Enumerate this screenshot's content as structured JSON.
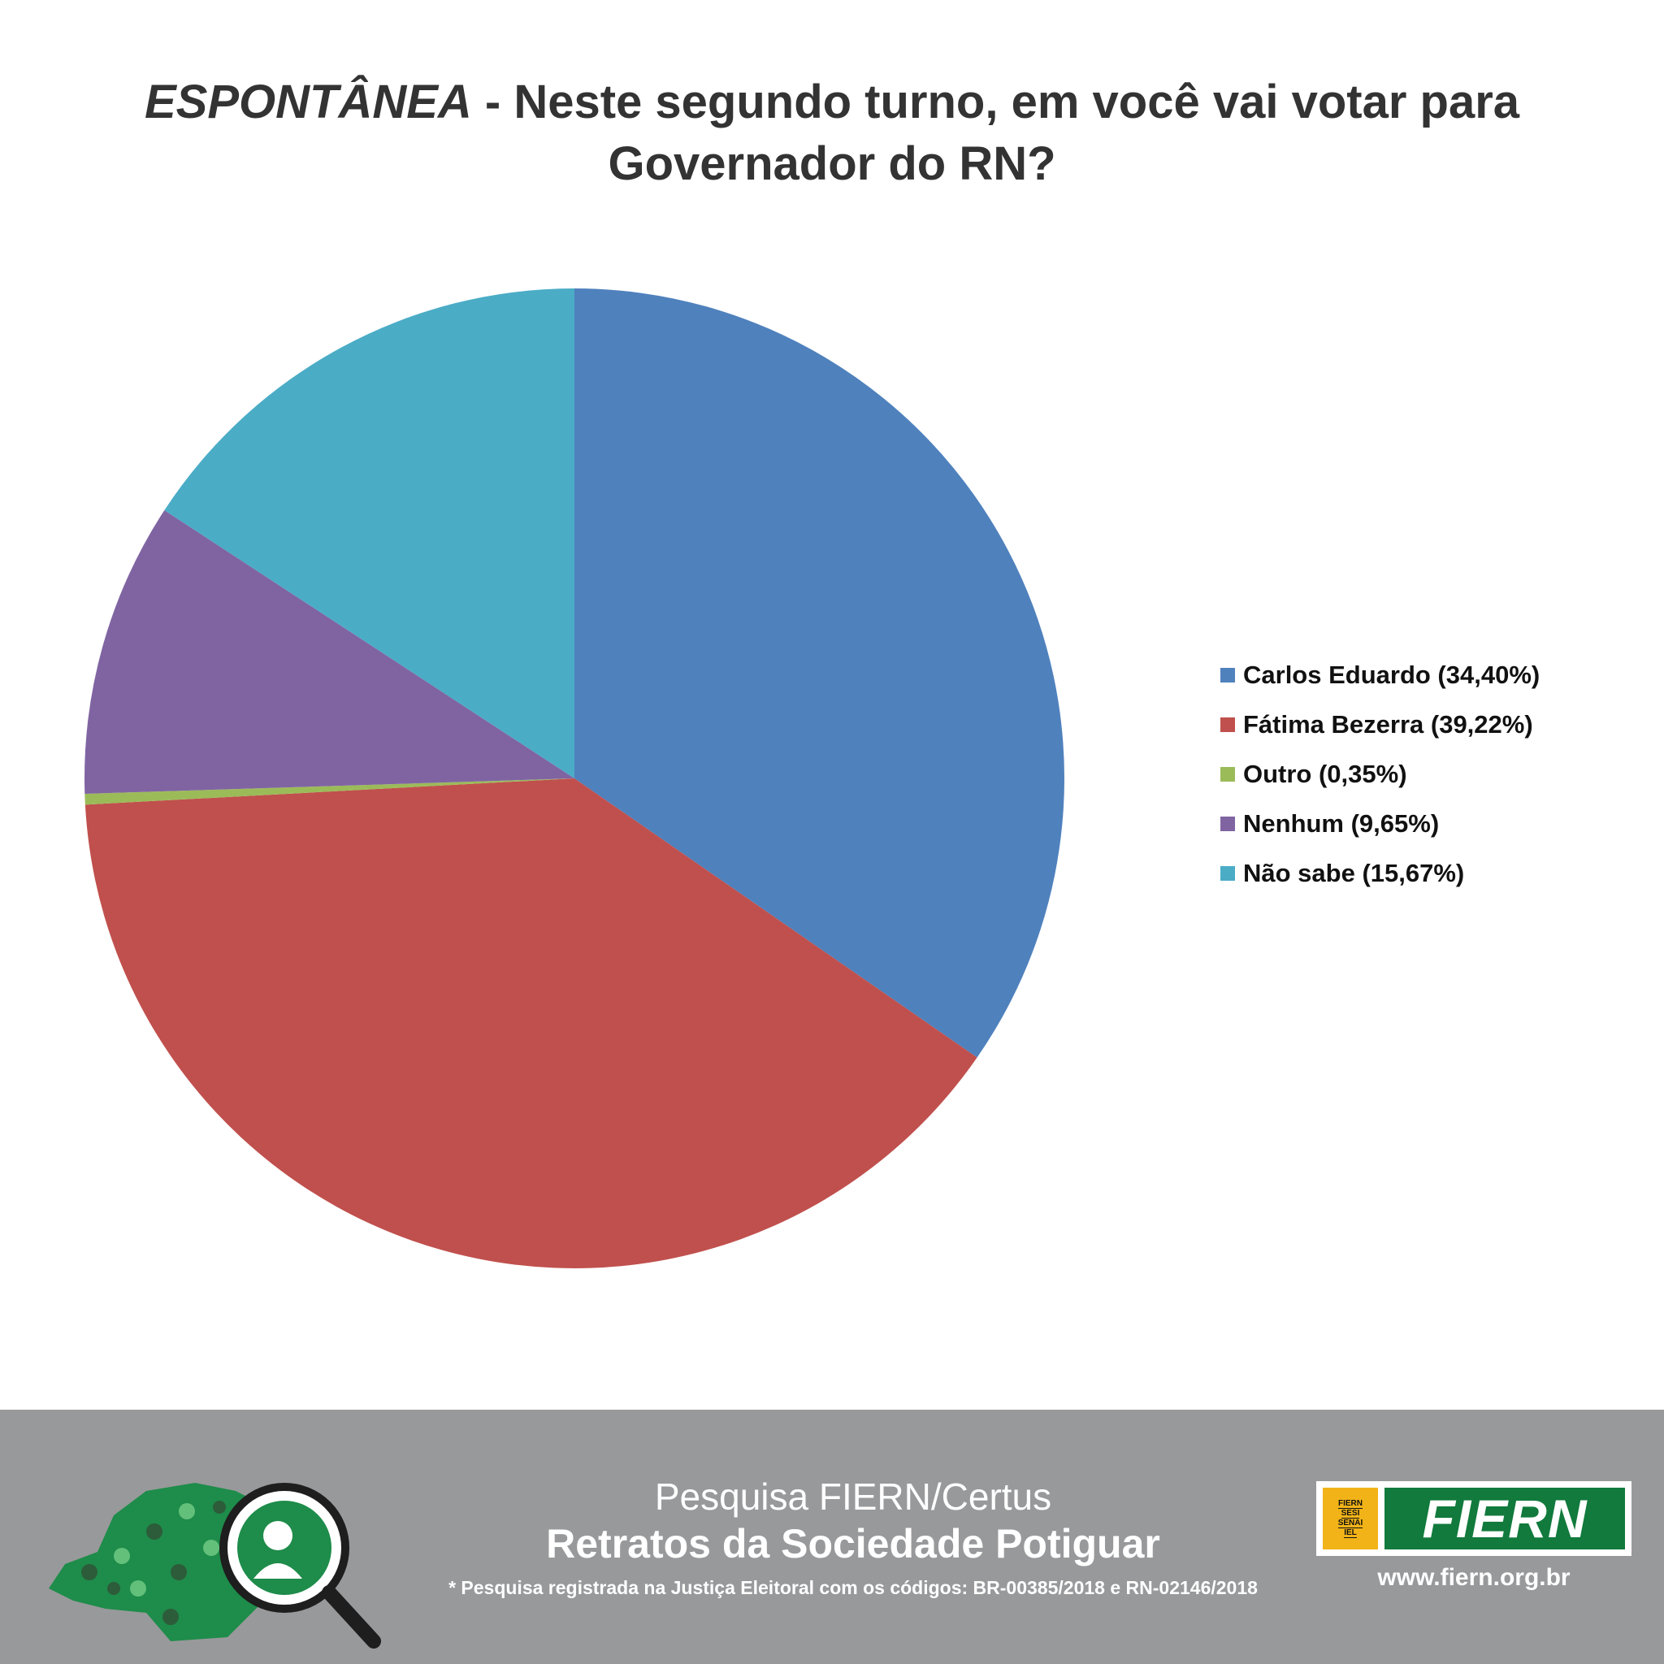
{
  "title": {
    "emphasis": "ESPONTÂNEA",
    "rest": " - Neste segundo turno, em você vai votar para Governador do RN?"
  },
  "chart_data": {
    "type": "pie",
    "title": "ESPONTÂNEA - Neste segundo turno, em você vai votar para Governador do RN?",
    "legend_position": "right",
    "categories": [
      "Carlos Eduardo",
      "Fátima Bezerra",
      "Outro",
      "Nenhum",
      "Não sabe"
    ],
    "values": [
      34.4,
      39.22,
      0.35,
      9.65,
      15.67
    ],
    "legend_labels": [
      "Carlos Eduardo (34,40%)",
      "Fátima Bezerra (39,22%)",
      "Outro (0,35%)",
      "Nenhum (9,65%)",
      "Não sabe (15,67%)"
    ],
    "colors": [
      "#4f81bd",
      "#c0504d",
      "#9bbb59",
      "#8064a2",
      "#4bacc6"
    ]
  },
  "footer": {
    "subtitle": "Pesquisa FIERN/Certus",
    "title": "Retratos da Sociedade Potiguar",
    "note": "* Pesquisa registrada na Justiça Eleitoral com os códigos: BR-00385/2018 e RN-02146/2018",
    "logo_small_lines": [
      "FIERN",
      "SESI",
      "SENAI",
      "IEL"
    ],
    "logo_text": "FIERN",
    "url": "www.fiern.org.br",
    "background": "#98999b"
  }
}
